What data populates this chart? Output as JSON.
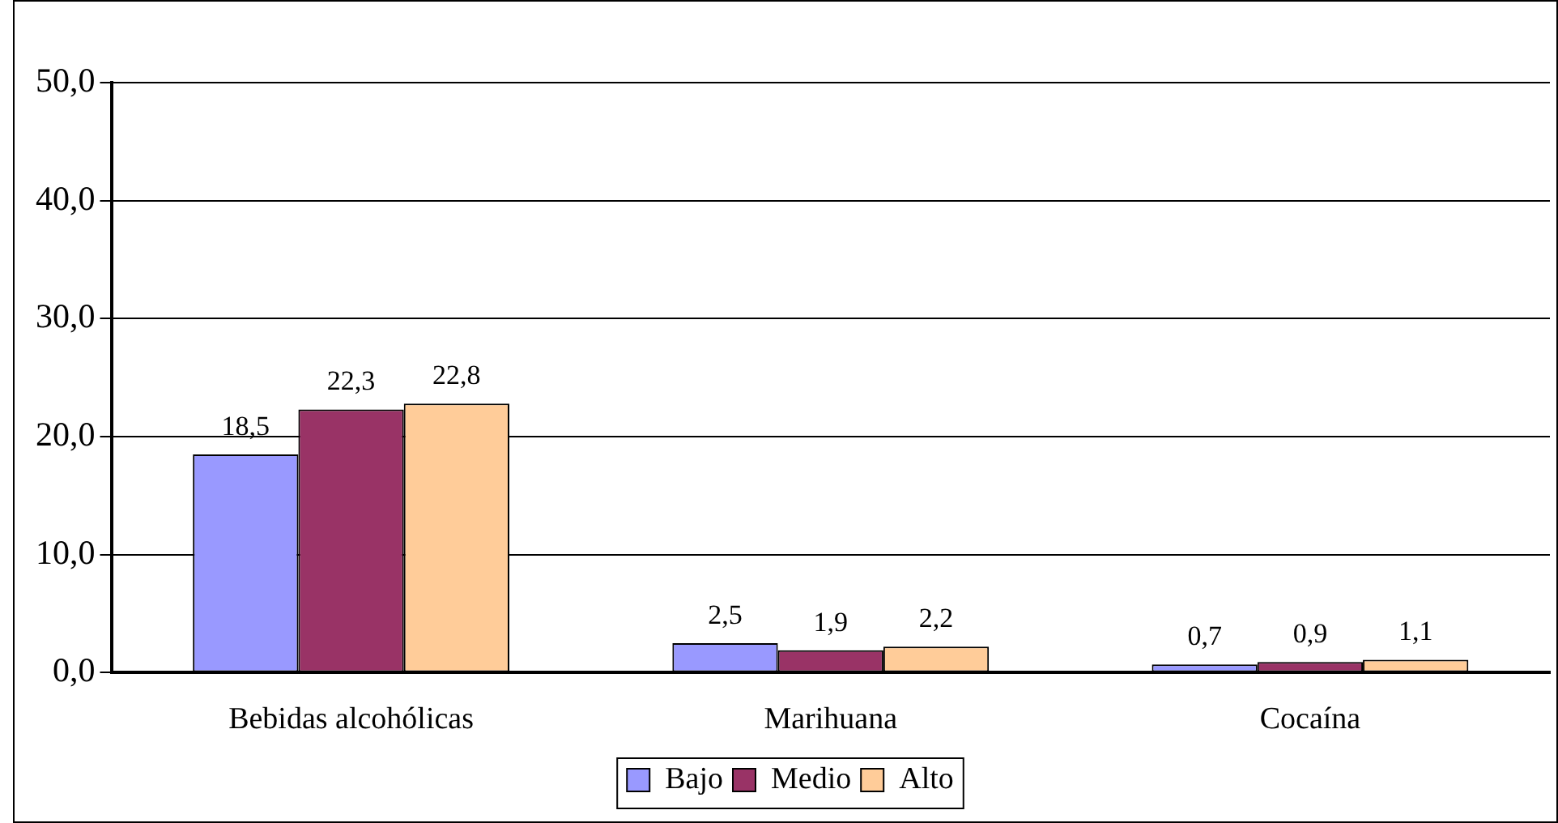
{
  "chart_data": {
    "type": "bar",
    "categories": [
      "Bebidas alcohólicas",
      "Marihuana",
      "Cocaína"
    ],
    "series": [
      {
        "name": "Bajo",
        "color": "#9999ff",
        "values": [
          18.5,
          2.5,
          0.7
        ],
        "value_labels": [
          "18,5",
          "2,5",
          "0,7"
        ]
      },
      {
        "name": "Medio",
        "color": "#993366",
        "values": [
          22.3,
          1.9,
          0.9
        ],
        "value_labels": [
          "22,3",
          "1,9",
          "0,9"
        ]
      },
      {
        "name": "Alto",
        "color": "#ffcc99",
        "values": [
          22.8,
          2.2,
          1.1
        ],
        "value_labels": [
          "22,8",
          "2,2",
          "1,1"
        ]
      }
    ],
    "ylim": [
      0,
      50
    ],
    "yticks": [
      {
        "value": 0,
        "label": "0,0"
      },
      {
        "value": 10,
        "label": "10,0"
      },
      {
        "value": 20,
        "label": "20,0"
      },
      {
        "value": 30,
        "label": "30,0"
      },
      {
        "value": 40,
        "label": "40,0"
      },
      {
        "value": 50,
        "label": "50,0"
      }
    ],
    "grid": "y",
    "legend": "bottom"
  }
}
